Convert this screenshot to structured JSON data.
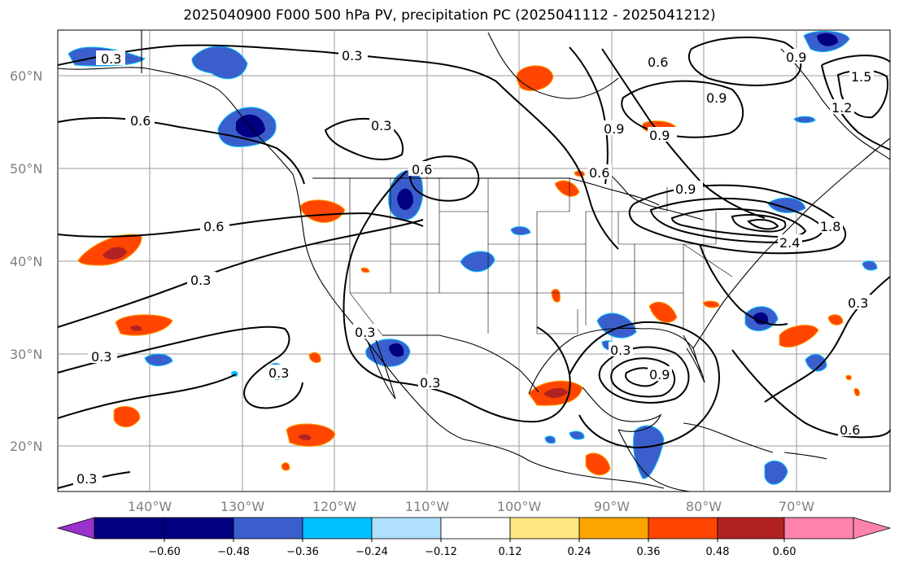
{
  "title": "2025040900 F000 500 hPa PV, precipitation PC (2025041112 - 2025041212)",
  "map": {
    "lat_ticks": [
      "60°N",
      "50°N",
      "40°N",
      "30°N",
      "20°N"
    ],
    "lon_ticks": [
      "140°W",
      "130°W",
      "120°W",
      "110°W",
      "100°W",
      "90°W",
      "80°W",
      "70°W"
    ],
    "contour_labels": [
      "0.3",
      "0.6",
      "0.3",
      "0.3",
      "0.6",
      "0.3",
      "0.3",
      "0.9",
      "0.6",
      "0.6",
      "0.9",
      "0.9",
      "0.3",
      "0.3",
      "0.9",
      "0.6",
      "0.6",
      "0.3",
      "0.3",
      "0.3",
      "0.9",
      "1.5",
      "1.2",
      "2.4",
      "1.8",
      "0.9",
      "0.3"
    ],
    "colors": {
      "land_outline": "#000000",
      "grid": "#9a9a9a",
      "contour": "#000000"
    }
  },
  "colorbar": {
    "ticks": [
      "−0.60",
      "−0.48",
      "−0.36",
      "−0.24",
      "−0.12",
      "0.12",
      "0.24",
      "0.36",
      "0.48",
      "0.60"
    ],
    "colors": [
      "#9932cc",
      "#000080",
      "#3a5fcd",
      "#00bfff",
      "#b0e0ff",
      "#ffffff",
      "#ffe680",
      "#ffa500",
      "#ff4500",
      "#b22222",
      "#ff82ab"
    ]
  }
}
